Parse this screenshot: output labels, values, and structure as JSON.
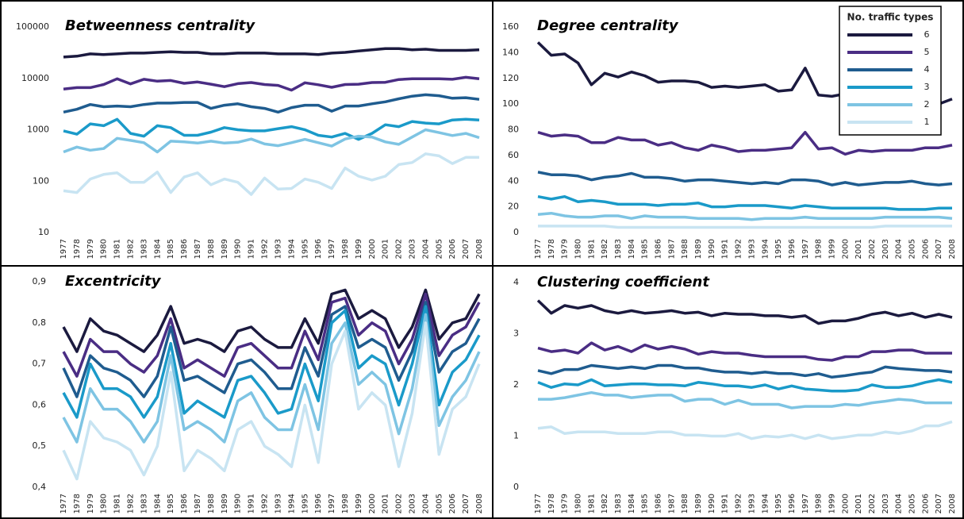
{
  "chart_data": [
    {
      "type": "line",
      "title": "Betweenness centrality",
      "log_scale": true,
      "categories": [
        "1977",
        "1978",
        "1979",
        "1980",
        "1981",
        "1982",
        "1983",
        "1984",
        "1985",
        "1986",
        "1987",
        "1988",
        "1989",
        "1990",
        "1991",
        "1992",
        "1993",
        "1994",
        "1995",
        "1996",
        "1997",
        "1998",
        "1999",
        "2000",
        "2001",
        "2002",
        "2003",
        "2004",
        "2005",
        "2006",
        "2007",
        "2008"
      ],
      "ylim": [
        10,
        100000
      ],
      "yticks": [
        10,
        100,
        1000,
        10000,
        100000
      ],
      "series": [
        {
          "color": "#1b1a3f",
          "values": [
            26000,
            27000,
            30000,
            29000,
            30000,
            31000,
            31000,
            32000,
            33000,
            32000,
            32000,
            30000,
            30000,
            31000,
            31000,
            31000,
            30000,
            30000,
            30000,
            29000,
            31000,
            32000,
            34000,
            36000,
            38000,
            38000,
            36000,
            37000,
            35000,
            35000,
            35000,
            36000
          ]
        },
        {
          "color": "#4a2d84",
          "values": [
            6200,
            6600,
            6600,
            7600,
            9800,
            7800,
            9600,
            8800,
            9100,
            8000,
            8500,
            7700,
            6900,
            7900,
            8300,
            7600,
            7300,
            5900,
            8200,
            7500,
            6700,
            7600,
            7700,
            8300,
            8400,
            9500,
            9800,
            9800,
            9800,
            9600,
            10500,
            9800
          ]
        },
        {
          "color": "#1f5c8f",
          "values": [
            2200,
            2500,
            3100,
            2800,
            2900,
            2800,
            3100,
            3300,
            3300,
            3400,
            3400,
            2600,
            3000,
            3200,
            2800,
            2600,
            2200,
            2700,
            3000,
            3000,
            2300,
            2900,
            2900,
            3200,
            3500,
            4000,
            4500,
            4800,
            4600,
            4100,
            4200,
            3900
          ]
        },
        {
          "color": "#1a9ac9",
          "values": [
            950,
            820,
            1300,
            1200,
            1600,
            850,
            750,
            1200,
            1100,
            780,
            780,
            900,
            1100,
            1000,
            950,
            950,
            1050,
            1150,
            1000,
            780,
            720,
            850,
            650,
            850,
            1250,
            1150,
            1450,
            1350,
            1300,
            1550,
            1600,
            1550
          ]
        },
        {
          "color": "#7ec4e3",
          "values": [
            370,
            460,
            400,
            430,
            680,
            620,
            560,
            370,
            600,
            580,
            550,
            600,
            550,
            570,
            660,
            530,
            490,
            560,
            650,
            560,
            480,
            660,
            750,
            720,
            580,
            520,
            720,
            1000,
            880,
            770,
            850,
            700
          ]
        },
        {
          "color": "#c8e4f2",
          "values": [
            65,
            60,
            110,
            135,
            145,
            95,
            95,
            150,
            60,
            120,
            145,
            85,
            110,
            95,
            55,
            115,
            70,
            72,
            110,
            95,
            72,
            180,
            125,
            105,
            125,
            210,
            230,
            340,
            310,
            220,
            290,
            290
          ]
        }
      ]
    },
    {
      "type": "line",
      "title": "Degree centrality",
      "legend_title": "No. traffic types",
      "legend": "top-right",
      "categories": [
        "1977",
        "1978",
        "1979",
        "1980",
        "1981",
        "1982",
        "1983",
        "1984",
        "1985",
        "1986",
        "1987",
        "1988",
        "1989",
        "1990",
        "1991",
        "1992",
        "1993",
        "1994",
        "1995",
        "1996",
        "1997",
        "1998",
        "1999",
        "2000",
        "2001",
        "2002",
        "2003",
        "2004",
        "2005",
        "2006",
        "2007",
        "2008"
      ],
      "ylim": [
        0,
        160
      ],
      "yticks": [
        0,
        20,
        40,
        60,
        80,
        100,
        120,
        140,
        160
      ],
      "series": [
        {
          "name": "6",
          "color": "#1b1a3f",
          "values": [
            148,
            138,
            139,
            132,
            115,
            124,
            121,
            125,
            122,
            117,
            118,
            118,
            117,
            113,
            114,
            113,
            114,
            115,
            110,
            111,
            128,
            107,
            106,
            108,
            109,
            107,
            105,
            104,
            103,
            99,
            100,
            104
          ]
        },
        {
          "name": "5",
          "color": "#4a2d84",
          "values": [
            78,
            75,
            76,
            75,
            70,
            70,
            74,
            72,
            72,
            68,
            70,
            66,
            64,
            68,
            66,
            63,
            64,
            64,
            65,
            66,
            78,
            65,
            66,
            61,
            64,
            63,
            64,
            64,
            64,
            66,
            66,
            68
          ]
        },
        {
          "name": "4",
          "color": "#1f5c8f",
          "values": [
            47,
            45,
            45,
            44,
            41,
            43,
            44,
            46,
            43,
            43,
            42,
            40,
            41,
            41,
            40,
            39,
            38,
            39,
            38,
            41,
            41,
            40,
            37,
            39,
            37,
            38,
            39,
            39,
            40,
            38,
            37,
            38
          ]
        },
        {
          "name": "3",
          "color": "#1a9ac9",
          "values": [
            28,
            26,
            28,
            24,
            25,
            24,
            22,
            22,
            22,
            21,
            22,
            22,
            23,
            20,
            20,
            21,
            21,
            21,
            20,
            19,
            21,
            20,
            19,
            19,
            19,
            19,
            19,
            18,
            18,
            18,
            19,
            19
          ]
        },
        {
          "name": "2",
          "color": "#7ec4e3",
          "values": [
            14,
            15,
            13,
            12,
            12,
            13,
            13,
            11,
            13,
            12,
            12,
            12,
            11,
            11,
            11,
            11,
            10,
            11,
            11,
            11,
            12,
            11,
            11,
            11,
            11,
            11,
            12,
            12,
            12,
            12,
            12,
            11
          ]
        },
        {
          "name": "1",
          "color": "#c8e4f2",
          "values": [
            5,
            5,
            5,
            5,
            5,
            5,
            4,
            4,
            4,
            4,
            4,
            4,
            4,
            4,
            4,
            4,
            4,
            4,
            4,
            4,
            4,
            4,
            4,
            4,
            4,
            4,
            5,
            5,
            5,
            5,
            5,
            5
          ]
        }
      ]
    },
    {
      "type": "line",
      "title": "Excentricity",
      "categories": [
        "1977",
        "1978",
        "1979",
        "1980",
        "1981",
        "1982",
        "1983",
        "1984",
        "1985",
        "1986",
        "1987",
        "1988",
        "1989",
        "1990",
        "1991",
        "1992",
        "1993",
        "1994",
        "1995",
        "1996",
        "1997",
        "1998",
        "1999",
        "2000",
        "2001",
        "2002",
        "2003",
        "2004",
        "2005",
        "2006",
        "2007",
        "2008"
      ],
      "ylim": [
        0.4,
        0.9
      ],
      "yticks": [
        {
          "value": 0.4,
          "label": "0,4"
        },
        {
          "value": 0.5,
          "label": "0,5"
        },
        {
          "value": 0.6,
          "label": "0,6"
        },
        {
          "value": 0.7,
          "label": "0,7"
        },
        {
          "value": 0.8,
          "label": "0,8"
        },
        {
          "value": 0.9,
          "label": "0,9"
        }
      ],
      "series": [
        {
          "color": "#1b1a3f",
          "values": [
            0.79,
            0.73,
            0.81,
            0.78,
            0.77,
            0.75,
            0.73,
            0.77,
            0.84,
            0.75,
            0.76,
            0.75,
            0.73,
            0.78,
            0.79,
            0.76,
            0.74,
            0.74,
            0.81,
            0.75,
            0.87,
            0.88,
            0.81,
            0.83,
            0.81,
            0.74,
            0.79,
            0.88,
            0.76,
            0.8,
            0.81,
            0.87
          ]
        },
        {
          "color": "#4a2d84",
          "values": [
            0.73,
            0.67,
            0.76,
            0.73,
            0.73,
            0.7,
            0.68,
            0.72,
            0.81,
            0.69,
            0.71,
            0.69,
            0.67,
            0.74,
            0.75,
            0.72,
            0.69,
            0.69,
            0.78,
            0.71,
            0.85,
            0.86,
            0.77,
            0.8,
            0.78,
            0.7,
            0.76,
            0.87,
            0.72,
            0.77,
            0.79,
            0.85
          ]
        },
        {
          "color": "#1f5c8f",
          "values": [
            0.69,
            0.62,
            0.72,
            0.69,
            0.68,
            0.66,
            0.62,
            0.67,
            0.79,
            0.66,
            0.67,
            0.65,
            0.63,
            0.7,
            0.71,
            0.68,
            0.64,
            0.64,
            0.74,
            0.67,
            0.82,
            0.84,
            0.74,
            0.76,
            0.74,
            0.66,
            0.73,
            0.85,
            0.68,
            0.73,
            0.75,
            0.81
          ]
        },
        {
          "color": "#1a9ac9",
          "values": [
            0.63,
            0.57,
            0.7,
            0.64,
            0.64,
            0.62,
            0.57,
            0.62,
            0.75,
            0.58,
            0.61,
            0.59,
            0.57,
            0.66,
            0.67,
            0.63,
            0.58,
            0.59,
            0.7,
            0.61,
            0.8,
            0.83,
            0.69,
            0.72,
            0.7,
            0.6,
            0.7,
            0.84,
            0.6,
            0.68,
            0.71,
            0.77
          ]
        },
        {
          "color": "#7ec4e3",
          "values": [
            0.57,
            0.51,
            0.64,
            0.59,
            0.59,
            0.56,
            0.51,
            0.56,
            0.72,
            0.54,
            0.56,
            0.54,
            0.51,
            0.61,
            0.63,
            0.57,
            0.54,
            0.54,
            0.65,
            0.54,
            0.75,
            0.8,
            0.65,
            0.68,
            0.65,
            0.53,
            0.64,
            0.82,
            0.55,
            0.62,
            0.66,
            0.73
          ]
        },
        {
          "color": "#c8e4f2",
          "values": [
            0.49,
            0.42,
            0.56,
            0.52,
            0.51,
            0.49,
            0.43,
            0.5,
            0.68,
            0.44,
            0.49,
            0.47,
            0.44,
            0.54,
            0.56,
            0.5,
            0.48,
            0.45,
            0.6,
            0.46,
            0.7,
            0.78,
            0.59,
            0.63,
            0.6,
            0.45,
            0.58,
            0.8,
            0.48,
            0.59,
            0.62,
            0.7
          ]
        }
      ]
    },
    {
      "type": "line",
      "title": "Clustering coefficient",
      "categories": [
        "1977",
        "1978",
        "1979",
        "1980",
        "1981",
        "1982",
        "1983",
        "1984",
        "1985",
        "1986",
        "1987",
        "1988",
        "1989",
        "1990",
        "1991",
        "1992",
        "1993",
        "1994",
        "1995",
        "1996",
        "1997",
        "1998",
        "1999",
        "2000",
        "2001",
        "2002",
        "2003",
        "2004",
        "2005",
        "2006",
        "2007",
        "2008"
      ],
      "ylim": [
        0,
        4
      ],
      "yticks": [
        0,
        1,
        2,
        3,
        4
      ],
      "series": [
        {
          "color": "#1b1a3f",
          "values": [
            3.65,
            3.4,
            3.55,
            3.5,
            3.55,
            3.45,
            3.4,
            3.45,
            3.4,
            3.42,
            3.45,
            3.4,
            3.42,
            3.35,
            3.4,
            3.38,
            3.38,
            3.35,
            3.35,
            3.32,
            3.35,
            3.2,
            3.25,
            3.25,
            3.3,
            3.38,
            3.42,
            3.35,
            3.4,
            3.32,
            3.38,
            3.32
          ]
        },
        {
          "color": "#4a2d84",
          "values": [
            2.72,
            2.65,
            2.68,
            2.62,
            2.82,
            2.68,
            2.75,
            2.65,
            2.78,
            2.7,
            2.75,
            2.7,
            2.6,
            2.65,
            2.62,
            2.62,
            2.58,
            2.55,
            2.55,
            2.55,
            2.55,
            2.5,
            2.48,
            2.55,
            2.55,
            2.65,
            2.65,
            2.68,
            2.68,
            2.62,
            2.62,
            2.62
          ]
        },
        {
          "color": "#1f5c8f",
          "values": [
            2.28,
            2.22,
            2.3,
            2.3,
            2.38,
            2.35,
            2.32,
            2.35,
            2.32,
            2.38,
            2.38,
            2.33,
            2.33,
            2.28,
            2.25,
            2.25,
            2.22,
            2.25,
            2.22,
            2.22,
            2.18,
            2.22,
            2.15,
            2.18,
            2.22,
            2.25,
            2.35,
            2.32,
            2.3,
            2.28,
            2.28,
            2.25
          ]
        },
        {
          "color": "#1a9ac9",
          "values": [
            2.05,
            1.95,
            2.02,
            2.0,
            2.1,
            1.98,
            2.0,
            2.02,
            2.02,
            2.0,
            2.0,
            1.98,
            2.05,
            2.02,
            1.98,
            1.98,
            1.95,
            2.0,
            1.92,
            1.98,
            1.92,
            1.9,
            1.88,
            1.88,
            1.9,
            2.0,
            1.95,
            1.95,
            1.98,
            2.05,
            2.1,
            2.05
          ]
        },
        {
          "color": "#7ec4e3",
          "values": [
            1.72,
            1.72,
            1.75,
            1.8,
            1.85,
            1.8,
            1.8,
            1.75,
            1.78,
            1.8,
            1.8,
            1.68,
            1.72,
            1.72,
            1.62,
            1.7,
            1.62,
            1.62,
            1.62,
            1.55,
            1.58,
            1.58,
            1.58,
            1.62,
            1.6,
            1.65,
            1.68,
            1.72,
            1.7,
            1.65,
            1.65,
            1.65
          ]
        },
        {
          "color": "#c8e4f2",
          "values": [
            1.15,
            1.18,
            1.05,
            1.08,
            1.08,
            1.08,
            1.05,
            1.05,
            1.05,
            1.08,
            1.08,
            1.02,
            1.02,
            1.0,
            1.0,
            1.05,
            0.95,
            1.0,
            0.98,
            1.02,
            0.95,
            1.02,
            0.95,
            0.98,
            1.02,
            1.02,
            1.08,
            1.05,
            1.1,
            1.2,
            1.2,
            1.28
          ]
        }
      ]
    }
  ]
}
